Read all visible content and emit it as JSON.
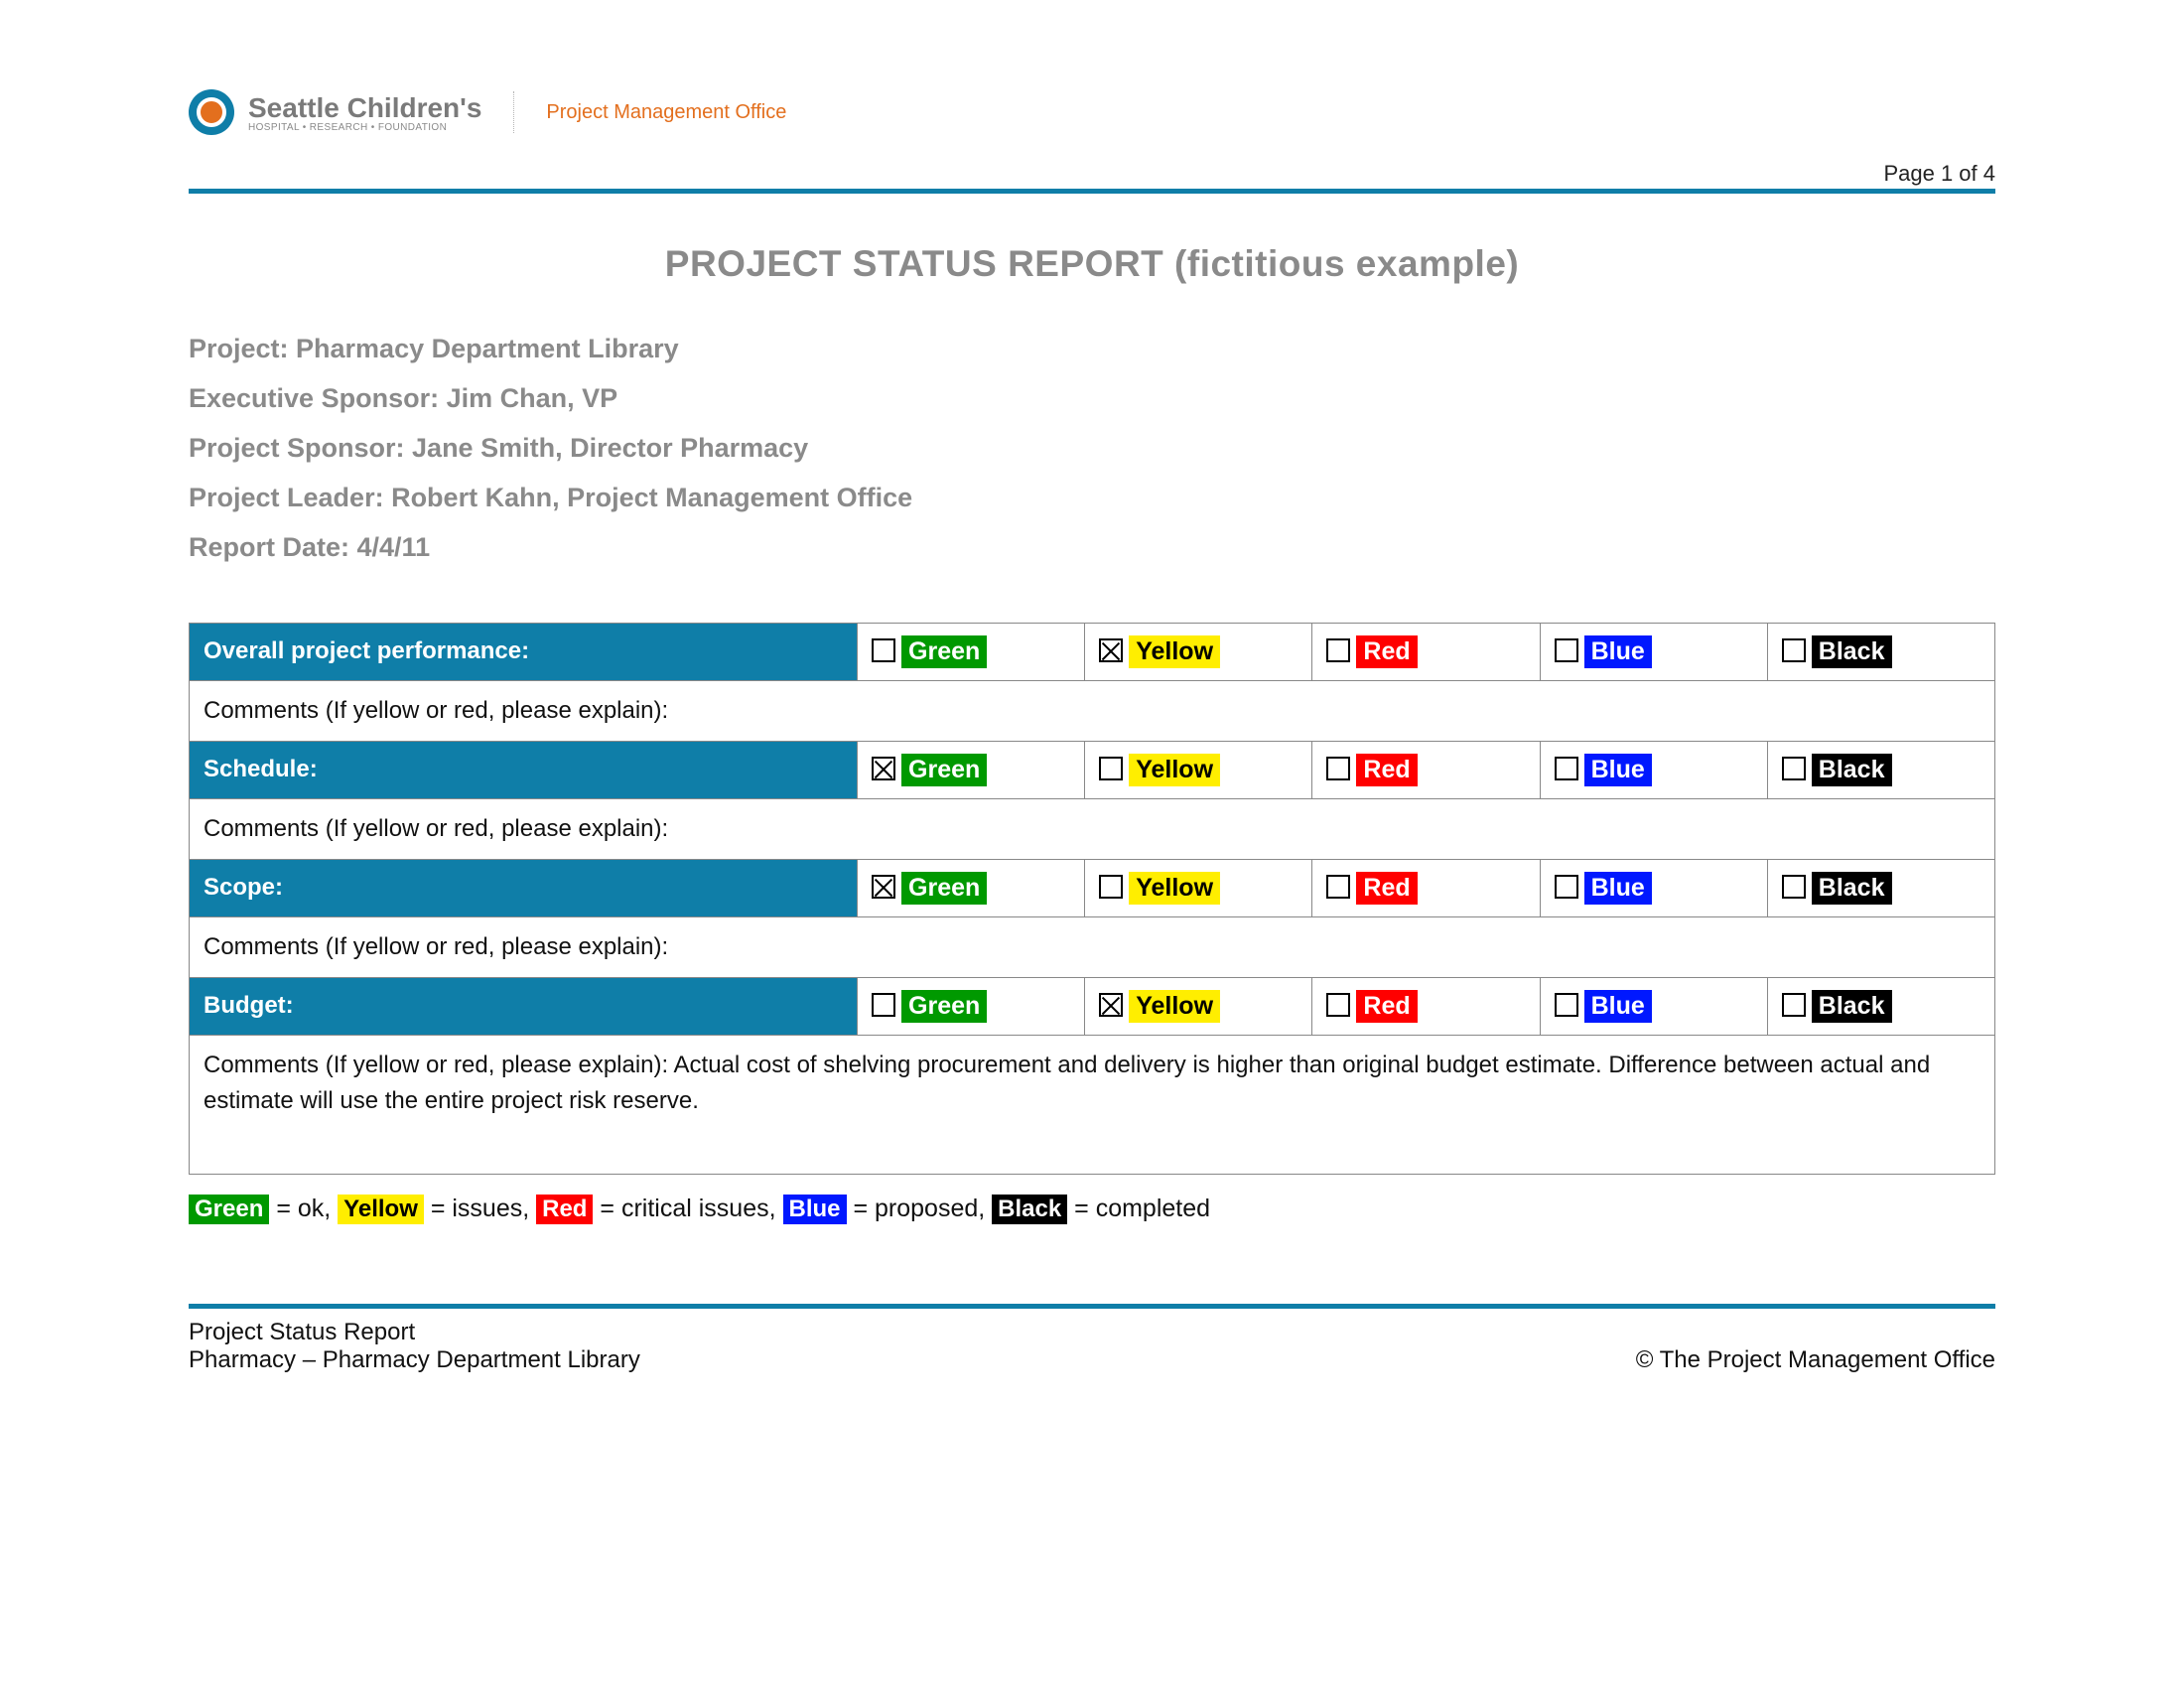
{
  "brand": {
    "main": "Seattle Children's",
    "sub": "HOSPITAL • RESEARCH • FOUNDATION",
    "office": "Project Management Office"
  },
  "page_indicator": "Page 1 of 4",
  "title": "PROJECT STATUS REPORT (fictitious example)",
  "meta": {
    "project": "Project: Pharmacy Department Library",
    "exec_sponsor": "Executive Sponsor: Jim Chan, VP",
    "proj_sponsor": "Project Sponsor:  Jane Smith, Director Pharmacy",
    "leader": "Project Leader: Robert Kahn, Project Management Office",
    "date": "Report Date: 4/4/11"
  },
  "columns": {
    "cat_pct": 37,
    "cell_pct": 12.6
  },
  "colors": {
    "accent": "#0f7ea8",
    "green": "#009900",
    "yellow": "#ffee00",
    "red": "#ff0000",
    "blue": "#0018ff",
    "black": "#000000"
  },
  "status_labels": {
    "green": "Green",
    "yellow": "Yellow",
    "red": "Red",
    "blue": "Blue",
    "black": "Black"
  },
  "rows": [
    {
      "label": "Overall project performance:",
      "selected": "yellow",
      "comments": "Comments (If yellow or red, please explain):"
    },
    {
      "label": "Schedule:",
      "selected": "green",
      "comments": "Comments (If yellow or red, please explain):"
    },
    {
      "label": "Scope:",
      "selected": "green",
      "comments": "Comments (If yellow or red, please explain):"
    },
    {
      "label": "Budget:",
      "selected": "yellow",
      "comments": "Comments (If yellow or red, please explain):  Actual cost of shelving procurement and delivery is higher than original budget estimate.  Difference between actual and estimate will use the entire project risk reserve.",
      "big": true
    }
  ],
  "legend": {
    "green": " = ok, ",
    "yellow": " = issues, ",
    "red": " = critical issues, ",
    "blue": " = proposed, ",
    "black": " = completed"
  },
  "footer": {
    "left1": "Project Status Report",
    "left2": "Pharmacy – Pharmacy Department Library",
    "right": "© The Project Management Office"
  }
}
